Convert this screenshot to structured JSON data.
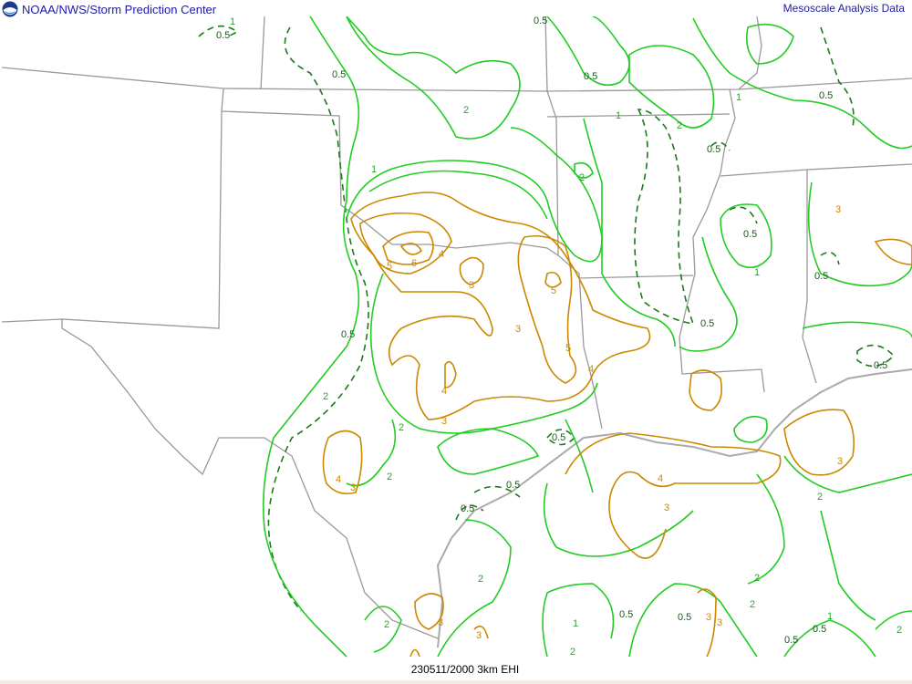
{
  "header": {
    "title_left": "NOAA/NWS/Storm Prediction Center",
    "title_right": "Mesoscale Analysis Data",
    "logo": "noaa-logo"
  },
  "footer": {
    "caption": "230511/2000 3km EHI"
  },
  "colors": {
    "contour_low": "#1a7a1a",
    "contour_green": "#22cc22",
    "contour_orange": "#cc8800",
    "borders": "#999999",
    "title": "#1a1aa6"
  },
  "contour_labels": [
    "0.5",
    "1",
    "0.5",
    "0.5",
    "2",
    "0.5",
    "1",
    "2",
    "0.5",
    "2",
    "1",
    "0.5",
    "1",
    "0.5",
    "0.5",
    "1",
    "5",
    "6",
    "4",
    "3",
    "5",
    "3",
    "5",
    "4",
    "4",
    "3",
    "0.5",
    "2",
    "4",
    "3",
    "2",
    "2",
    "0.5",
    "0.5",
    "4",
    "3",
    "3",
    "2",
    "2",
    "2",
    "1",
    "0.5",
    "0.5",
    "3",
    "3",
    "2",
    "3",
    "3",
    "2",
    "0.5",
    "0.5",
    "1",
    "2",
    "0.5",
    "3",
    "2",
    "0.5",
    "0.5"
  ]
}
